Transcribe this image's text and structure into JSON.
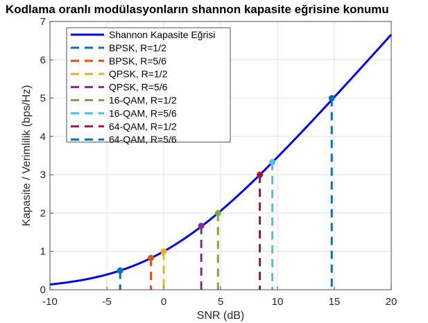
{
  "chart_data": {
    "type": "line",
    "title": "Kodlama oranlı modülasyonların shannon kapasite eğrisine konumu",
    "xlabel": "SNR (dB)",
    "ylabel": "Kapasite / Verimlilik (bps/Hz)",
    "xlim": [
      -10,
      20
    ],
    "ylim": [
      0,
      7
    ],
    "xticks": [
      -10,
      -5,
      0,
      5,
      10,
      15,
      20
    ],
    "yticks": [
      0,
      1,
      2,
      3,
      4,
      5,
      6,
      7
    ],
    "grid": true,
    "legend_position": "top-left",
    "series": [
      {
        "name": "Shannon Kapasite Eğrisi",
        "kind": "curve",
        "formula": "log2(1+10^(SNR/10))",
        "color": "#0000ff"
      },
      {
        "name": "BPSK, R=1/2",
        "kind": "point-drop",
        "x": -3.83,
        "y": 0.5,
        "color": "#0072bd"
      },
      {
        "name": "BPSK, R=5/6",
        "kind": "point-drop",
        "x": -1.12,
        "y": 0.833,
        "color": "#d95319"
      },
      {
        "name": "QPSK, R=1/2",
        "kind": "point-drop",
        "x": 0.0,
        "y": 1.0,
        "color": "#edb120"
      },
      {
        "name": "QPSK, R=5/6",
        "kind": "point-drop",
        "x": 3.3,
        "y": 1.667,
        "color": "#7e2f8e"
      },
      {
        "name": "16-QAM, R=1/2",
        "kind": "point-drop",
        "x": 4.77,
        "y": 2.0,
        "color": "#77ac30"
      },
      {
        "name": "16-QAM, R=5/6",
        "kind": "point-drop",
        "x": 9.55,
        "y": 3.333,
        "color": "#4dbeee"
      },
      {
        "name": "64-QAM, R=1/2",
        "kind": "point-drop",
        "x": 8.45,
        "y": 3.0,
        "color": "#a2142f"
      },
      {
        "name": "64-QAM, R=5/6",
        "kind": "point-drop",
        "x": 14.77,
        "y": 5.0,
        "color": "#0072bd"
      }
    ]
  }
}
